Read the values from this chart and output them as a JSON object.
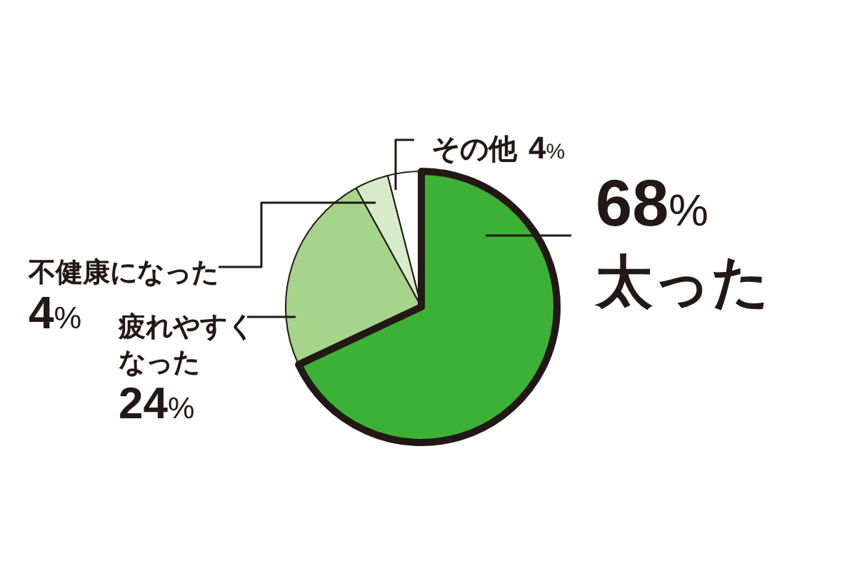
{
  "chart_data": {
    "type": "pie",
    "categories": [
      "その他",
      "不健康になった",
      "疲れやすくなった",
      "太った"
    ],
    "values": [
      4,
      4,
      24,
      68
    ],
    "colors": [
      "#ffffff",
      "#d7ebca",
      "#a6d48b",
      "#3db135"
    ],
    "value_labels": [
      "4%",
      "4%",
      "24%",
      "68%"
    ]
  }
}
